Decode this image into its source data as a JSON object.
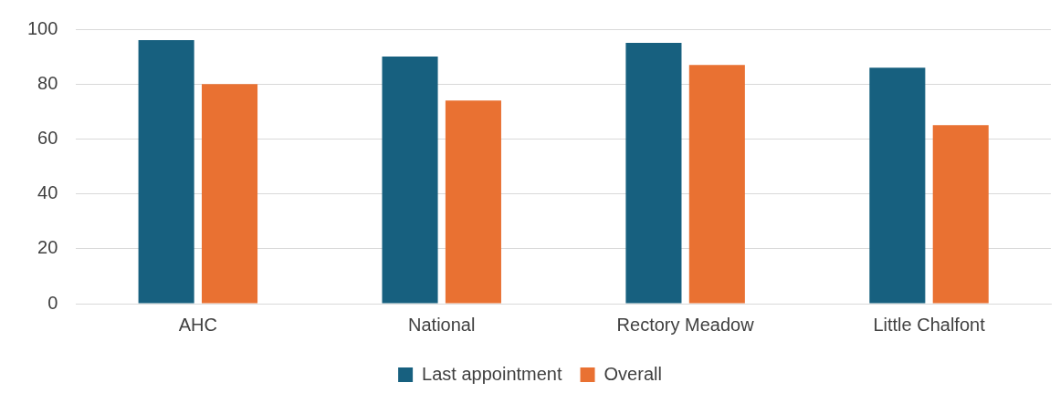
{
  "chart_data": {
    "type": "bar",
    "categories": [
      "AHC",
      "National",
      "Rectory Meadow",
      "Little Chalfont"
    ],
    "series": [
      {
        "name": "Last appointment",
        "color": "#17607f",
        "values": [
          96,
          90,
          95,
          86
        ]
      },
      {
        "name": "Overall",
        "color": "#e97132",
        "values": [
          80,
          74,
          87,
          65
        ]
      }
    ],
    "ylim": [
      0,
      100
    ],
    "yticks": [
      0,
      20,
      40,
      60,
      80,
      100
    ],
    "grid": "y",
    "legend": "bottom"
  }
}
